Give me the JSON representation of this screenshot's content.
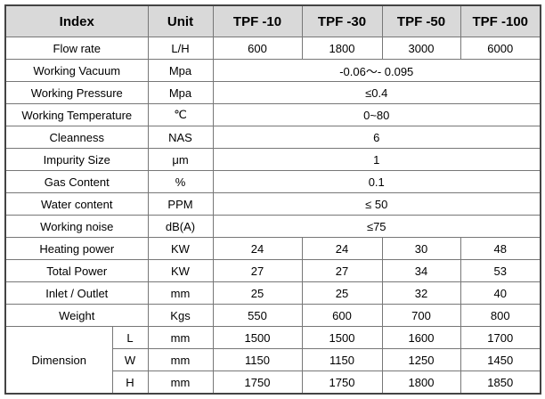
{
  "table": {
    "header": [
      "Index",
      "Unit",
      "TPF -10",
      "TPF -30",
      "TPF -50",
      "TPF -100"
    ],
    "rows": [
      {
        "label": "Flow rate",
        "unit": "L/H",
        "values": [
          600,
          1800,
          3000,
          6000
        ]
      },
      {
        "label": "Working Vacuum",
        "unit": "Mpa",
        "values": [
          "-0.06～- 0.095"
        ]
      },
      {
        "label": "Working Pressure",
        "unit": "Mpa",
        "values": [
          "≤0.4"
        ]
      },
      {
        "label": "Working Temperature",
        "unit": "℃",
        "values": [
          "0~80"
        ]
      },
      {
        "label": "Cleanness",
        "unit": "NAS",
        "values": [
          6
        ]
      },
      {
        "label": "Impurity Size",
        "unit": "μm",
        "values": [
          1
        ]
      },
      {
        "label": "Gas Content",
        "unit": "%",
        "values": [
          0.1
        ]
      },
      {
        "label": "Water content",
        "unit": "PPM",
        "values": [
          "≤ 50"
        ]
      },
      {
        "label": "Working noise",
        "unit": "dB(A)",
        "values": [
          "≤75"
        ]
      },
      {
        "label": "Heating power",
        "unit": "KW",
        "values": [
          24,
          24,
          30,
          48
        ]
      },
      {
        "label": "Total Power",
        "unit": "KW",
        "values": [
          27,
          27,
          34,
          53
        ]
      },
      {
        "label": "Inlet / Outlet",
        "unit": "mm",
        "values": [
          25,
          25,
          32,
          40
        ]
      },
      {
        "label": "Weight",
        "unit": "Kgs",
        "values": [
          550,
          600,
          700,
          800
        ]
      }
    ],
    "dimension": {
      "label": "Dimension",
      "rows": [
        {
          "label": "L",
          "unit": "mm",
          "values": [
            1500,
            1500,
            1600,
            1700
          ]
        },
        {
          "label": "W",
          "unit": "mm",
          "values": [
            1150,
            1150,
            1250,
            1450
          ]
        },
        {
          "label": "H",
          "unit": "mm",
          "values": [
            1750,
            1750,
            1800,
            1850
          ]
        }
      ]
    }
  }
}
